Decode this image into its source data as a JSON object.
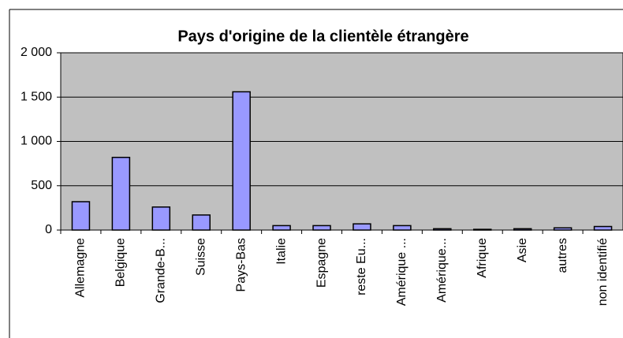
{
  "chart_data": {
    "type": "bar",
    "title": "Pays d'origine de la clientèle étrangère",
    "categories": [
      "Allemagne",
      "Belgique",
      "Grande-B...",
      "Suisse",
      "Pays-Bas",
      "Italie",
      "Espagne",
      "reste Eu...",
      "Amérique ...",
      "Amérique...",
      "Afrique",
      "Asie",
      "autres",
      "non identifié"
    ],
    "values": [
      320,
      820,
      260,
      170,
      1560,
      50,
      50,
      70,
      50,
      15,
      8,
      15,
      25,
      40
    ],
    "color": "#9999ff",
    "ylim": [
      0,
      2000
    ],
    "yticks": [
      0,
      500,
      {
        "value": 1000,
        "label": "1 000"
      },
      {
        "value": 1500,
        "label": "1 500"
      },
      {
        "value": 2000,
        "label": "2 000"
      }
    ],
    "grid": true
  }
}
